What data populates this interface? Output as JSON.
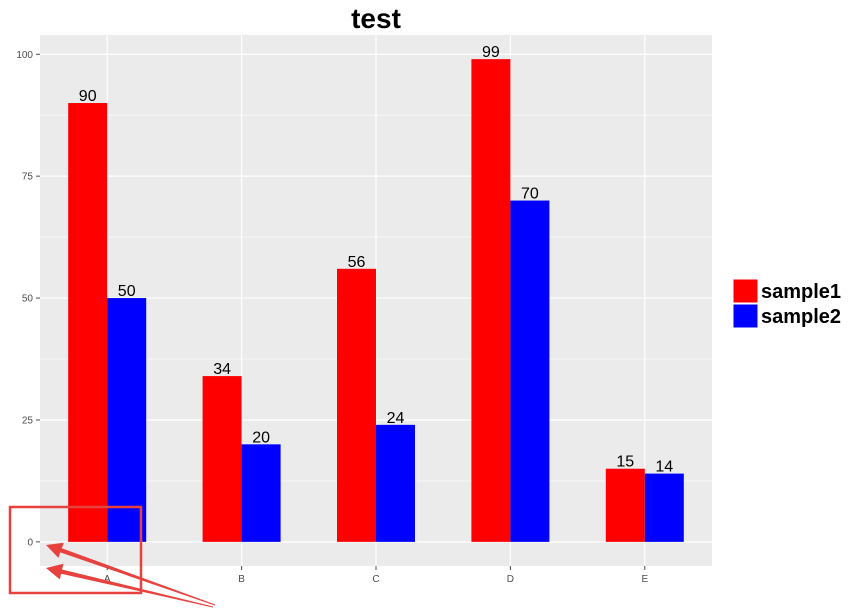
{
  "chart_data": {
    "type": "bar",
    "title": "test",
    "xlabel": "",
    "ylabel": "",
    "categories": [
      "A",
      "B",
      "C",
      "D",
      "E"
    ],
    "series": [
      {
        "name": "sample1",
        "values": [
          90,
          34,
          56,
          99,
          15
        ],
        "color": "#ff0000"
      },
      {
        "name": "sample2",
        "values": [
          50,
          20,
          24,
          70,
          14
        ],
        "color": "#0000ff"
      }
    ],
    "ylim": [
      -4.95,
      103.95
    ],
    "yticks": [
      0,
      25,
      50,
      75,
      100
    ],
    "data_labels": true,
    "grid": true,
    "legend": "right",
    "panel_background": "#ebebeb",
    "gridline_color": "#ffffff"
  },
  "annotations": {
    "highlight_color": "#e8423f"
  }
}
